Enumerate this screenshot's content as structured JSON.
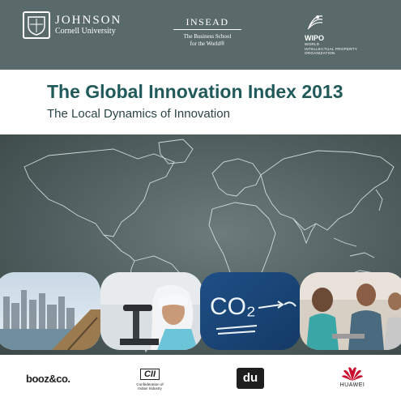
{
  "partners": {
    "johnson": {
      "name": "JOHNSON",
      "sub": "Cornell University",
      "icon": "crest-icon"
    },
    "insead": {
      "name": "INSEAD",
      "tagline_1": "The Business School",
      "tagline_2": "for the World®"
    },
    "wipo": {
      "name": "WIPO",
      "full_1": "WORLD",
      "full_2": "INTELLECTUAL PROPERTY",
      "full_3": "ORGANIZATION",
      "icon": "wipo-emblem-icon"
    }
  },
  "cover": {
    "title": "The Global Innovation Index 2013",
    "subtitle": "The Local Dynamics of Innovation"
  },
  "photos": [
    {
      "name": "city-skyline-photo"
    },
    {
      "name": "microscope-researcher-photo"
    },
    {
      "name": "chalkboard-photo",
      "text": "CO₂"
    },
    {
      "name": "classroom-photo"
    }
  ],
  "sponsors": {
    "booz": "booz&co.",
    "cii": {
      "mark": "CII",
      "line_1": "Confederation of",
      "line_2": "Indian Industry"
    },
    "du": "du",
    "huawei": "HUAWEI"
  },
  "colors": {
    "band": "#5a6a6a",
    "title": "#215a5a",
    "map": "#4f5e5e"
  }
}
